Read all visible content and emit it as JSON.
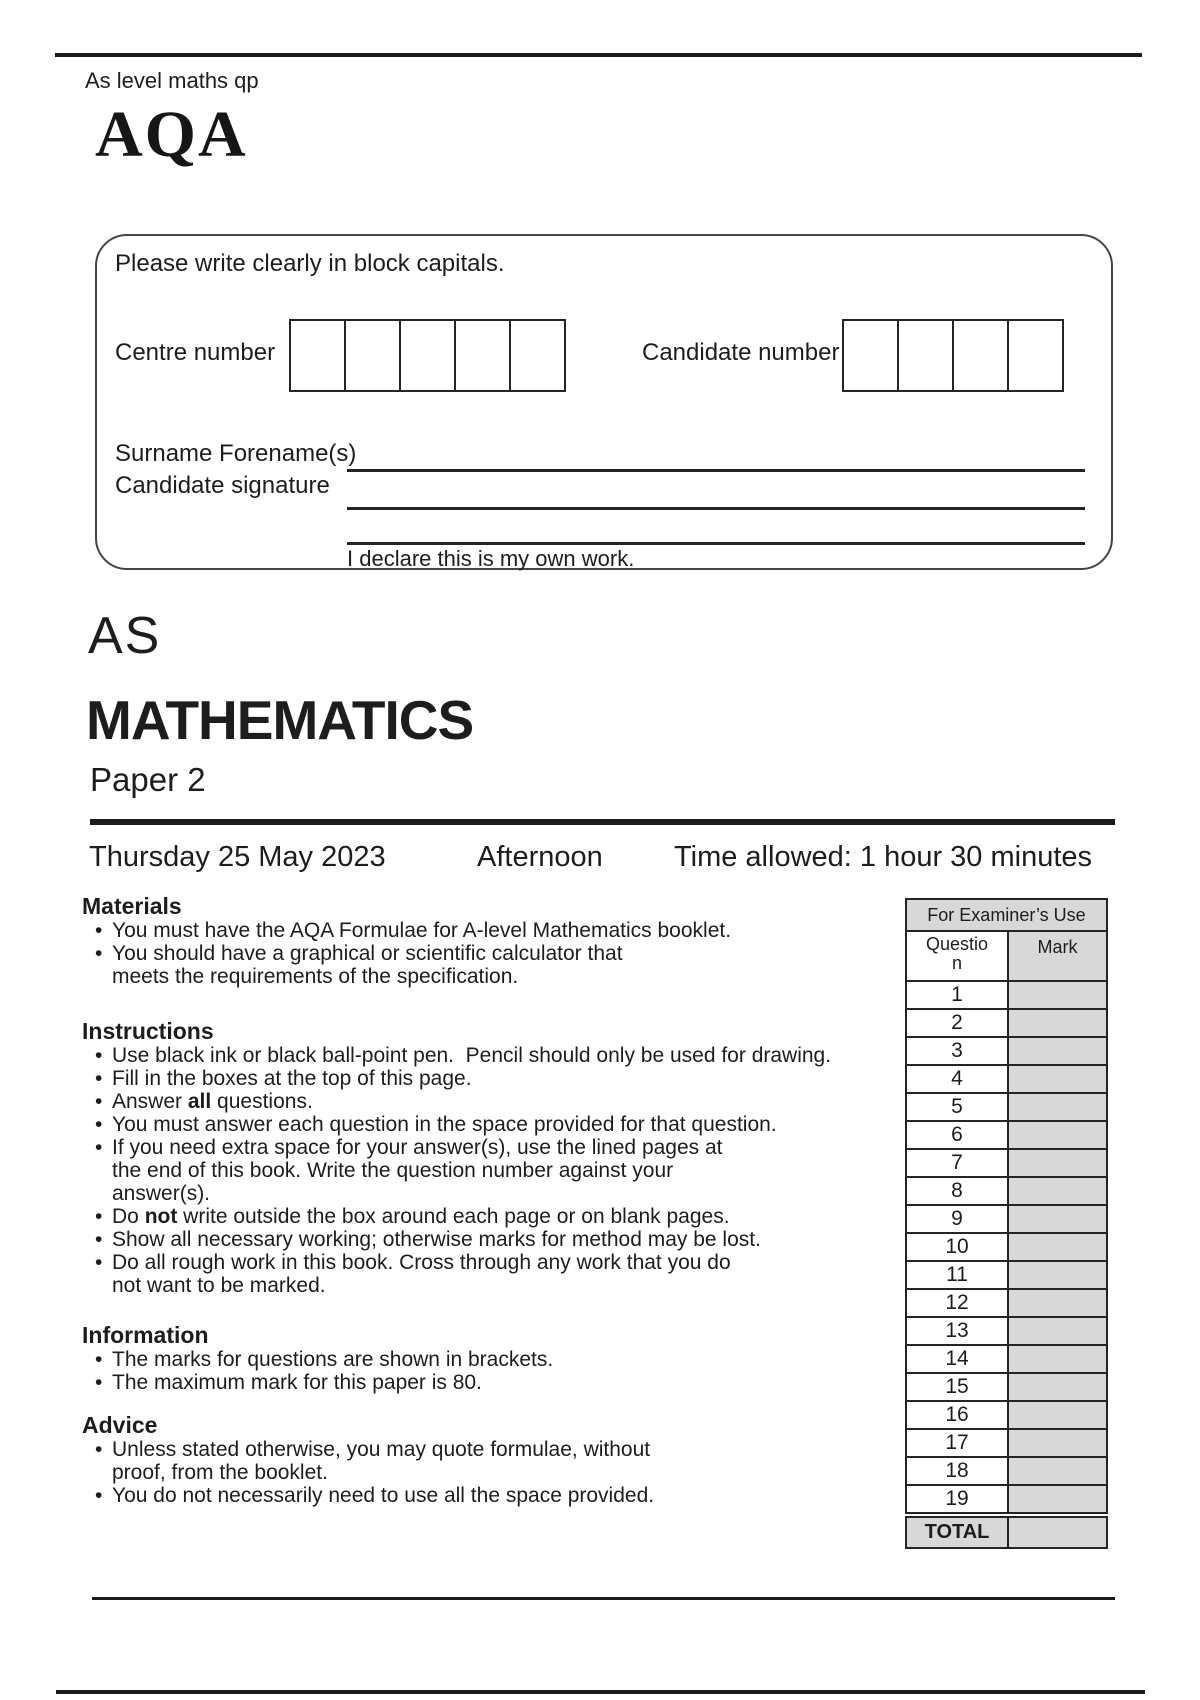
{
  "header": {
    "course_label": "As level maths qp",
    "logo": "AQA"
  },
  "candidate_box": {
    "instruction": "Please write clearly in block capitals.",
    "centre_number_label": "Centre number",
    "centre_number_cells": 5,
    "candidate_number_label": "Candidate number",
    "candidate_number_cells": 4,
    "surname_label": "Surname Forename(s)",
    "signature_label": "Candidate signature",
    "declaration": "I declare this is my own work."
  },
  "title": {
    "level": "AS",
    "subject": "MATHEMATICS",
    "paper": "Paper 2"
  },
  "session": {
    "date": "Thursday 25 May 2023",
    "time_of_day": "Afternoon",
    "time_allowed": "Time allowed: 1 hour 30 minutes"
  },
  "sections": [
    {
      "key": "materials",
      "heading": "Materials",
      "lines": [
        {
          "bullet": true,
          "segments": [
            {
              "text": "You must have the AQA Formulae for A-level Mathematics booklet."
            }
          ]
        },
        {
          "bullet": true,
          "segments": [
            {
              "text": "You should have a graphical or scientific calculator that"
            }
          ]
        },
        {
          "bullet": false,
          "segments": [
            {
              "text": "meets the requirements of the specification."
            }
          ]
        }
      ]
    },
    {
      "key": "instructions",
      "heading": "Instructions",
      "lines": [
        {
          "bullet": true,
          "segments": [
            {
              "text": "Use black ink or black ball-point pen.  Pencil should only be used for drawing."
            }
          ]
        },
        {
          "bullet": true,
          "segments": [
            {
              "text": "Fill in the boxes at the top of this page."
            }
          ]
        },
        {
          "bullet": true,
          "segments": [
            {
              "text": "Answer "
            },
            {
              "text": "all",
              "bold": true
            },
            {
              "text": " questions."
            }
          ]
        },
        {
          "bullet": true,
          "segments": [
            {
              "text": "You must answer each question in the space provided for that question."
            }
          ]
        },
        {
          "bullet": true,
          "segments": [
            {
              "text": "If you need extra space for your answer(s), use the lined pages at"
            }
          ]
        },
        {
          "bullet": false,
          "segments": [
            {
              "text": "the end of this book. Write the question number against your"
            }
          ]
        },
        {
          "bullet": false,
          "segments": [
            {
              "text": "answer(s)."
            }
          ]
        },
        {
          "bullet": true,
          "segments": [
            {
              "text": "Do "
            },
            {
              "text": "not",
              "bold": true
            },
            {
              "text": " write outside the box around each page or on blank pages."
            }
          ]
        },
        {
          "bullet": true,
          "segments": [
            {
              "text": "Show all necessary working; otherwise marks for method may be lost."
            }
          ]
        },
        {
          "bullet": true,
          "segments": [
            {
              "text": "Do all rough work in this book. Cross through any work that you do"
            }
          ]
        },
        {
          "bullet": false,
          "segments": [
            {
              "text": "not want to be marked."
            }
          ]
        }
      ]
    },
    {
      "key": "information",
      "heading": "Information",
      "lines": [
        {
          "bullet": true,
          "segments": [
            {
              "text": "The marks for questions are shown in brackets."
            }
          ]
        },
        {
          "bullet": true,
          "segments": [
            {
              "text": "The maximum mark for this paper is 80."
            }
          ]
        }
      ]
    },
    {
      "key": "advice",
      "heading": "Advice",
      "lines": [
        {
          "bullet": true,
          "segments": [
            {
              "text": "Unless stated otherwise, you may quote formulae, without"
            }
          ]
        },
        {
          "bullet": false,
          "segments": [
            {
              "text": "proof, from the booklet."
            }
          ]
        },
        {
          "bullet": true,
          "segments": [
            {
              "text": "You do not necessarily need to use all the space provided."
            }
          ]
        }
      ]
    }
  ],
  "examiner_table": {
    "title": "For Examiner’s Use",
    "question_header_lines": [
      "Questio",
      "n"
    ],
    "mark_header": "Mark",
    "rows": [
      "1",
      "2",
      "3",
      "4",
      "5",
      "6",
      "7",
      "8",
      "9",
      "10",
      "11",
      "12",
      "13",
      "14",
      "15",
      "16",
      "17",
      "18",
      "19"
    ],
    "total_label": "TOTAL"
  },
  "colors": {
    "ink": "#1d1d1d",
    "table_gray": "#d8d8d8"
  }
}
